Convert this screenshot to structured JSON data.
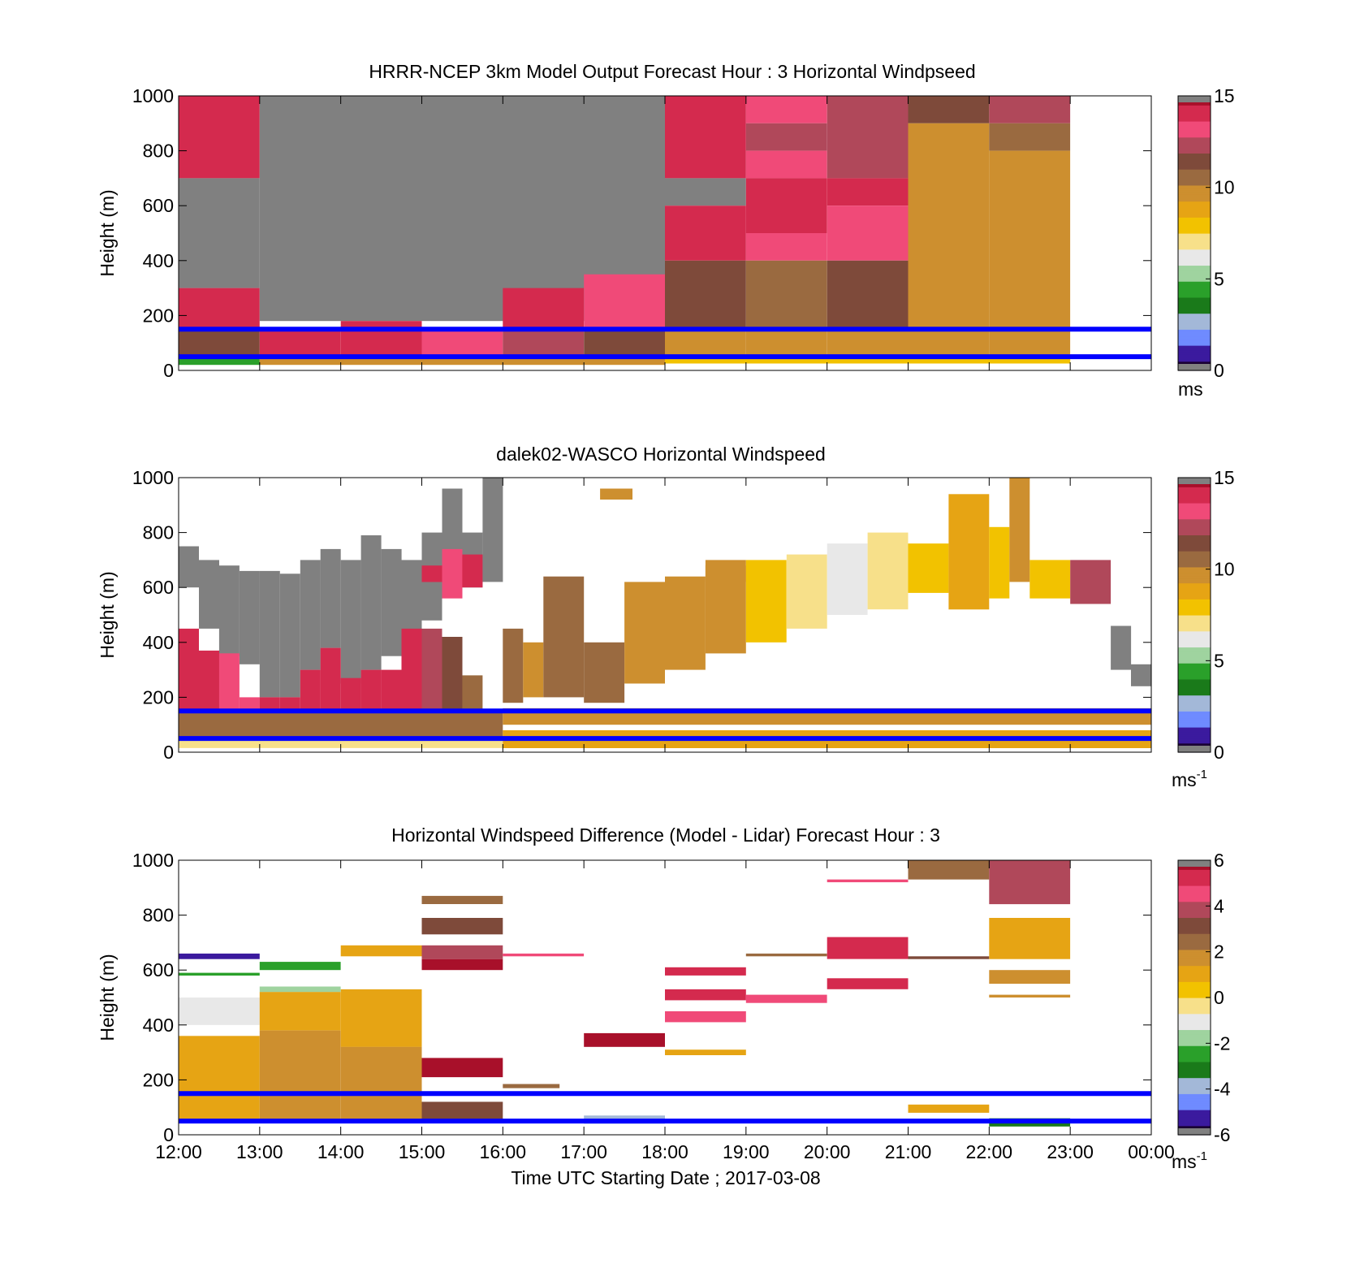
{
  "colors": {
    "frame": "#000000",
    "reference_line": "#0000ff",
    "missing_value": "#808080",
    "colormap": [
      "#808080",
      "#1a0033",
      "#3b1a9e",
      "#6f8bff",
      "#a3b8d8",
      "#1a7a1a",
      "#2aa02a",
      "#9fd39f",
      "#e8e8e8",
      "#f7e08a",
      "#f2c200",
      "#e6a414",
      "#cd8f2f",
      "#9a6a40",
      "#7e4a3a",
      "#b0485a",
      "#f04a78",
      "#d42a4e",
      "#a8102a",
      "#808080"
    ]
  },
  "chart_data": [
    {
      "type": "heatmap",
      "title": "HRRR-NCEP 3km Model Output   Forecast Hour : 3 Horizontal Windpseed",
      "ylabel": "Height (m)",
      "xlabel": "",
      "ylim": [
        0,
        1000
      ],
      "yticks": [
        "0",
        "200",
        "400",
        "600",
        "800",
        "1000"
      ],
      "xticks": [],
      "xlim_hours": [
        12,
        24
      ],
      "colorbar": {
        "min": 0,
        "max": 15,
        "ticks": [
          "0",
          "5",
          "10",
          "15"
        ],
        "unit": "ms",
        "unit_superscript": ""
      },
      "reference_lines_m": [
        150,
        50
      ],
      "cells": [
        {
          "t0": 12,
          "t1": 13,
          "z0": 700,
          "z1": 1000,
          "v": 13.8
        },
        {
          "t0": 12,
          "t1": 13,
          "z0": 300,
          "z1": 700,
          "v": -1
        },
        {
          "t0": 12,
          "t1": 13,
          "z0": 150,
          "z1": 300,
          "v": 13.7
        },
        {
          "t0": 12,
          "t1": 13,
          "z0": 50,
          "z1": 150,
          "v": 11.2
        },
        {
          "t0": 12,
          "t1": 13,
          "z0": 20,
          "z1": 50,
          "v": 4.0
        },
        {
          "t0": 13,
          "t1": 18,
          "z0": 180,
          "z1": 1000,
          "v": -1
        },
        {
          "t0": 13,
          "t1": 14,
          "z0": 50,
          "z1": 150,
          "v": 14.0
        },
        {
          "t0": 14,
          "t1": 15,
          "z0": 50,
          "z1": 180,
          "v": 13.9
        },
        {
          "t0": 15,
          "t1": 16,
          "z0": 50,
          "z1": 150,
          "v": 13.5
        },
        {
          "t0": 16,
          "t1": 17,
          "z0": 300,
          "z1": 1000,
          "v": -1
        },
        {
          "t0": 16,
          "t1": 17,
          "z0": 150,
          "z1": 300,
          "v": 14.2
        },
        {
          "t0": 16,
          "t1": 17,
          "z0": 50,
          "z1": 150,
          "v": 12.2
        },
        {
          "t0": 17,
          "t1": 18,
          "z0": 350,
          "z1": 1000,
          "v": -1
        },
        {
          "t0": 17,
          "t1": 18,
          "z0": 150,
          "z1": 350,
          "v": 13.6
        },
        {
          "t0": 17,
          "t1": 18,
          "z0": 50,
          "z1": 150,
          "v": 11.5
        },
        {
          "t0": 13,
          "t1": 18,
          "z0": 20,
          "z1": 50,
          "v": 9.5
        },
        {
          "t0": 18,
          "t1": 19,
          "z0": 700,
          "z1": 1000,
          "v": 14.3
        },
        {
          "t0": 18,
          "t1": 19,
          "z0": 600,
          "z1": 700,
          "v": -1
        },
        {
          "t0": 18,
          "t1": 19,
          "z0": 400,
          "z1": 600,
          "v": 13.7
        },
        {
          "t0": 18,
          "t1": 19,
          "z0": 150,
          "z1": 400,
          "v": 11.8
        },
        {
          "t0": 18,
          "t1": 19,
          "z0": 50,
          "z1": 150,
          "v": 9.5
        },
        {
          "t0": 19,
          "t1": 20,
          "z0": 900,
          "z1": 1000,
          "v": 13.0
        },
        {
          "t0": 19,
          "t1": 20,
          "z0": 800,
          "z1": 900,
          "v": 12.2
        },
        {
          "t0": 19,
          "t1": 20,
          "z0": 700,
          "z1": 800,
          "v": 13.0
        },
        {
          "t0": 19,
          "t1": 20,
          "z0": 500,
          "z1": 700,
          "v": 13.9
        },
        {
          "t0": 19,
          "t1": 20,
          "z0": 400,
          "z1": 500,
          "v": 13.0
        },
        {
          "t0": 19,
          "t1": 20,
          "z0": 150,
          "z1": 400,
          "v": 10.7
        },
        {
          "t0": 19,
          "t1": 20,
          "z0": 50,
          "z1": 150,
          "v": 9.5
        },
        {
          "t0": 20,
          "t1": 21,
          "z0": 700,
          "z1": 1000,
          "v": 12.3
        },
        {
          "t0": 20,
          "t1": 21,
          "z0": 600,
          "z1": 700,
          "v": 13.9
        },
        {
          "t0": 20,
          "t1": 21,
          "z0": 400,
          "z1": 600,
          "v": 13.1
        },
        {
          "t0": 20,
          "t1": 21,
          "z0": 150,
          "z1": 400,
          "v": 11.3
        },
        {
          "t0": 20,
          "t1": 21,
          "z0": 50,
          "z1": 150,
          "v": 10.1
        },
        {
          "t0": 21,
          "t1": 22,
          "z0": 900,
          "z1": 1000,
          "v": 11.5
        },
        {
          "t0": 21,
          "t1": 22,
          "z0": 50,
          "z1": 900,
          "v": 10.0
        },
        {
          "t0": 22,
          "t1": 23,
          "z0": 900,
          "z1": 1000,
          "v": 12.2
        },
        {
          "t0": 22,
          "t1": 23,
          "z0": 800,
          "z1": 900,
          "v": 11.0
        },
        {
          "t0": 22,
          "t1": 23,
          "z0": 50,
          "z1": 800,
          "v": 9.9
        },
        {
          "t0": 18,
          "t1": 23,
          "z0": 25,
          "z1": 50,
          "v": 8.0
        }
      ]
    },
    {
      "type": "heatmap",
      "title": "dalek02-WASCO  Horizontal Windspeed",
      "ylabel": "Height (m)",
      "xlabel": "",
      "ylim": [
        0,
        1000
      ],
      "yticks": [
        "0",
        "200",
        "400",
        "600",
        "800",
        "1000"
      ],
      "xticks": [],
      "xlim_hours": [
        12,
        24
      ],
      "colorbar": {
        "min": 0,
        "max": 15,
        "ticks": [
          "0",
          "5",
          "10",
          "15"
        ],
        "unit": "ms",
        "unit_superscript": "-1"
      },
      "reference_lines_m": [
        150,
        50
      ],
      "cells": [
        {
          "t0": 12,
          "t1": 12.25,
          "z0": 600,
          "z1": 750,
          "v": -1
        },
        {
          "t0": 12.25,
          "t1": 12.5,
          "z0": 450,
          "z1": 700,
          "v": -1
        },
        {
          "t0": 12.5,
          "t1": 12.75,
          "z0": 350,
          "z1": 680,
          "v": -1
        },
        {
          "t0": 12.75,
          "t1": 13,
          "z0": 320,
          "z1": 660,
          "v": -1
        },
        {
          "t0": 13,
          "t1": 13.25,
          "z0": 200,
          "z1": 660,
          "v": -1
        },
        {
          "t0": 13.25,
          "t1": 13.5,
          "z0": 200,
          "z1": 650,
          "v": -1
        },
        {
          "t0": 13.5,
          "t1": 13.75,
          "z0": 300,
          "z1": 700,
          "v": -1
        },
        {
          "t0": 13.75,
          "t1": 14,
          "z0": 380,
          "z1": 740,
          "v": -1
        },
        {
          "t0": 14,
          "t1": 14.25,
          "z0": 250,
          "z1": 700,
          "v": -1
        },
        {
          "t0": 14.25,
          "t1": 14.5,
          "z0": 300,
          "z1": 790,
          "v": -1
        },
        {
          "t0": 14.5,
          "t1": 14.75,
          "z0": 350,
          "z1": 740,
          "v": -1
        },
        {
          "t0": 14.75,
          "t1": 15,
          "z0": 380,
          "z1": 700,
          "v": -1
        },
        {
          "t0": 15,
          "t1": 15.25,
          "z0": 480,
          "z1": 800,
          "v": -1
        },
        {
          "t0": 15.25,
          "t1": 15.5,
          "z0": 600,
          "z1": 960,
          "v": -1
        },
        {
          "t0": 15.5,
          "t1": 15.75,
          "z0": 600,
          "z1": 800,
          "v": -1
        },
        {
          "t0": 15.75,
          "t1": 16,
          "z0": 620,
          "z1": 1000,
          "v": -1
        },
        {
          "t0": 12,
          "t1": 12.25,
          "z0": 150,
          "z1": 450,
          "v": 13.7
        },
        {
          "t0": 12.25,
          "t1": 12.5,
          "z0": 150,
          "z1": 370,
          "v": 14.0
        },
        {
          "t0": 12.5,
          "t1": 12.75,
          "z0": 150,
          "z1": 360,
          "v": 13.0
        },
        {
          "t0": 12.75,
          "t1": 13,
          "z0": 150,
          "z1": 200,
          "v": 13.4
        },
        {
          "t0": 13,
          "t1": 13.25,
          "z0": 150,
          "z1": 200,
          "v": 14.2
        },
        {
          "t0": 13.25,
          "t1": 13.5,
          "z0": 150,
          "z1": 200,
          "v": 14.0
        },
        {
          "t0": 13.5,
          "t1": 13.75,
          "z0": 150,
          "z1": 300,
          "v": 13.9
        },
        {
          "t0": 13.75,
          "t1": 14,
          "z0": 150,
          "z1": 380,
          "v": 13.8
        },
        {
          "t0": 14,
          "t1": 14.25,
          "z0": 150,
          "z1": 270,
          "v": 14.0
        },
        {
          "t0": 14.25,
          "t1": 14.5,
          "z0": 150,
          "z1": 300,
          "v": 13.8
        },
        {
          "t0": 14.5,
          "t1": 14.75,
          "z0": 150,
          "z1": 300,
          "v": 13.9
        },
        {
          "t0": 14.75,
          "t1": 15,
          "z0": 150,
          "z1": 450,
          "v": 13.9
        },
        {
          "t0": 15,
          "t1": 15.25,
          "z0": 150,
          "z1": 450,
          "v": 12.2
        },
        {
          "t0": 15.25,
          "t1": 15.5,
          "z0": 150,
          "z1": 420,
          "v": 11.2
        },
        {
          "t0": 15.5,
          "t1": 15.75,
          "z0": 150,
          "z1": 280,
          "v": 10.3
        },
        {
          "t0": 15,
          "t1": 15.25,
          "z0": 620,
          "z1": 680,
          "v": 14.0
        },
        {
          "t0": 15.25,
          "t1": 15.5,
          "z0": 560,
          "z1": 740,
          "v": 13.3
        },
        {
          "t0": 15.5,
          "t1": 15.75,
          "z0": 600,
          "z1": 720,
          "v": 14.3
        },
        {
          "t0": 12,
          "t1": 16,
          "z0": 50,
          "z1": 150,
          "v": 10.6
        },
        {
          "t0": 12,
          "t1": 16,
          "z0": 15,
          "z1": 50,
          "v": 6.7
        },
        {
          "t0": 16,
          "t1": 16.25,
          "z0": 180,
          "z1": 450,
          "v": 10.4
        },
        {
          "t0": 16.25,
          "t1": 16.5,
          "z0": 200,
          "z1": 400,
          "v": 9.7
        },
        {
          "t0": 16.5,
          "t1": 17,
          "z0": 200,
          "z1": 640,
          "v": 10.4
        },
        {
          "t0": 17,
          "t1": 17.5,
          "z0": 180,
          "z1": 400,
          "v": 10.3
        },
        {
          "t0": 17.5,
          "t1": 18,
          "z0": 250,
          "z1": 620,
          "v": 10.0
        },
        {
          "t0": 18,
          "t1": 18.5,
          "z0": 300,
          "z1": 640,
          "v": 10.1
        },
        {
          "t0": 18.5,
          "t1": 19,
          "z0": 360,
          "z1": 680,
          "v": 9.8
        },
        {
          "t0": 18.5,
          "t1": 19,
          "z0": 620,
          "z1": 700,
          "v": 9.9
        },
        {
          "t0": 17.2,
          "t1": 17.6,
          "z0": 920,
          "z1": 960,
          "v": 9.3
        },
        {
          "t0": 19,
          "t1": 19.5,
          "z0": 400,
          "z1": 700,
          "v": 8.0
        },
        {
          "t0": 19.5,
          "t1": 20,
          "z0": 450,
          "z1": 720,
          "v": 7.0
        },
        {
          "t0": 20,
          "t1": 20.5,
          "z0": 500,
          "z1": 760,
          "v": 6.6
        },
        {
          "t0": 20.5,
          "t1": 21,
          "z0": 520,
          "z1": 800,
          "v": 7.2
        },
        {
          "t0": 21,
          "t1": 21.5,
          "z0": 580,
          "z1": 760,
          "v": 7.5
        },
        {
          "t0": 21.5,
          "t1": 22,
          "z0": 520,
          "z1": 940,
          "v": 8.8
        },
        {
          "t0": 22,
          "t1": 22.25,
          "z0": 560,
          "z1": 820,
          "v": 7.6
        },
        {
          "t0": 22.25,
          "t1": 22.5,
          "z0": 620,
          "z1": 1000,
          "v": 9.7
        },
        {
          "t0": 22.5,
          "t1": 23,
          "z0": 560,
          "z1": 700,
          "v": 8.3
        },
        {
          "t0": 23,
          "t1": 23.5,
          "z0": 540,
          "z1": 700,
          "v": 12.0
        },
        {
          "t0": 23.5,
          "t1": 23.75,
          "z0": 300,
          "z1": 460,
          "v": -1
        },
        {
          "t0": 23.75,
          "t1": 24,
          "z0": 240,
          "z1": 320,
          "v": -1
        },
        {
          "t0": 16,
          "t1": 24,
          "z0": 100,
          "z1": 160,
          "v": 9.6
        },
        {
          "t0": 16,
          "t1": 24,
          "z0": 15,
          "z1": 80,
          "v": 8.9
        }
      ]
    },
    {
      "type": "heatmap",
      "title": "Horizontal Windspeed Difference (Model - Lidar) Forecast Hour : 3",
      "ylabel": "Height (m)",
      "xlabel": "Time UTC  Starting Date ; 2017-03-08",
      "ylim": [
        0,
        1000
      ],
      "yticks": [
        "0",
        "200",
        "400",
        "600",
        "800",
        "1000"
      ],
      "xticks": [
        "12:00",
        "13:00",
        "14:00",
        "15:00",
        "16:00",
        "17:00",
        "18:00",
        "19:00",
        "20:00",
        "21:00",
        "22:00",
        "23:00",
        "00:00"
      ],
      "xlim_hours": [
        12,
        24
      ],
      "colorbar": {
        "min": -6,
        "max": 6,
        "ticks": [
          "-6",
          "-4",
          "-2",
          "0",
          "2",
          "4",
          "6"
        ],
        "unit": "ms",
        "unit_superscript": "-1"
      },
      "reference_lines_m": [
        150,
        50
      ],
      "cells": [
        {
          "t0": 12,
          "t1": 13,
          "z0": 640,
          "z1": 660,
          "v": -5.0
        },
        {
          "t0": 12,
          "t1": 13,
          "z0": 580,
          "z1": 590,
          "v": -2.8
        },
        {
          "t0": 12,
          "t1": 13,
          "z0": 400,
          "z1": 500,
          "v": -1.2
        },
        {
          "t0": 12,
          "t1": 13,
          "z0": 50,
          "z1": 360,
          "v": 1.4
        },
        {
          "t0": 13,
          "t1": 14,
          "z0": 600,
          "z1": 630,
          "v": -2.3
        },
        {
          "t0": 13,
          "t1": 14,
          "z0": 520,
          "z1": 540,
          "v": -2.0
        },
        {
          "t0": 13,
          "t1": 14,
          "z0": 380,
          "z1": 520,
          "v": 0.8
        },
        {
          "t0": 13,
          "t1": 14,
          "z0": 50,
          "z1": 380,
          "v": 2.0
        },
        {
          "t0": 14,
          "t1": 15,
          "z0": 650,
          "z1": 690,
          "v": 1.2
        },
        {
          "t0": 14,
          "t1": 15,
          "z0": 320,
          "z1": 530,
          "v": 1.1
        },
        {
          "t0": 14,
          "t1": 15,
          "z0": 50,
          "z1": 320,
          "v": 1.5
        },
        {
          "t0": 15,
          "t1": 16,
          "z0": 840,
          "z1": 870,
          "v": 2.3
        },
        {
          "t0": 15,
          "t1": 16,
          "z0": 730,
          "z1": 790,
          "v": 3.1
        },
        {
          "t0": 15,
          "t1": 16,
          "z0": 640,
          "z1": 690,
          "v": 3.8
        },
        {
          "t0": 15,
          "t1": 16,
          "z0": 600,
          "z1": 640,
          "v": 5.8
        },
        {
          "t0": 15,
          "t1": 16,
          "z0": 210,
          "z1": 280,
          "v": 6.0
        },
        {
          "t0": 15,
          "t1": 16,
          "z0": 50,
          "z1": 120,
          "v": 3.0
        },
        {
          "t0": 16,
          "t1": 17,
          "z0": 650,
          "z1": 660,
          "v": 4.7
        },
        {
          "t0": 16,
          "t1": 16.7,
          "z0": 170,
          "z1": 185,
          "v": 2.4
        },
        {
          "t0": 17,
          "t1": 18,
          "z0": 320,
          "z1": 370,
          "v": 6.0
        },
        {
          "t0": 17,
          "t1": 18,
          "z0": 40,
          "z1": 70,
          "v": -3.7
        },
        {
          "t0": 18,
          "t1": 19,
          "z0": 580,
          "z1": 610,
          "v": 5.0
        },
        {
          "t0": 18,
          "t1": 19,
          "z0": 490,
          "z1": 530,
          "v": 5.0
        },
        {
          "t0": 18,
          "t1": 19,
          "z0": 410,
          "z1": 450,
          "v": 4.8
        },
        {
          "t0": 18,
          "t1": 19,
          "z0": 290,
          "z1": 310,
          "v": 1.3
        },
        {
          "t0": 19,
          "t1": 20,
          "z0": 650,
          "z1": 660,
          "v": 2.4
        },
        {
          "t0": 19,
          "t1": 20,
          "z0": 480,
          "z1": 510,
          "v": 4.8
        },
        {
          "t0": 20,
          "t1": 21,
          "z0": 920,
          "z1": 930,
          "v": 4.9
        },
        {
          "t0": 20,
          "t1": 21,
          "z0": 640,
          "z1": 720,
          "v": 5.1
        },
        {
          "t0": 20,
          "t1": 21,
          "z0": 530,
          "z1": 570,
          "v": 5.1
        },
        {
          "t0": 21,
          "t1": 22,
          "z0": 930,
          "z1": 1000,
          "v": 2.8
        },
        {
          "t0": 21,
          "t1": 22,
          "z0": 640,
          "z1": 650,
          "v": 3.2
        },
        {
          "t0": 21,
          "t1": 22,
          "z0": 80,
          "z1": 110,
          "v": 0.8
        },
        {
          "t0": 22,
          "t1": 23,
          "z0": 840,
          "z1": 1000,
          "v": 3.9
        },
        {
          "t0": 22,
          "t1": 23,
          "z0": 640,
          "z1": 790,
          "v": 1.2
        },
        {
          "t0": 22,
          "t1": 23,
          "z0": 550,
          "z1": 600,
          "v": 1.5
        },
        {
          "t0": 22,
          "t1": 23,
          "z0": 500,
          "z1": 510,
          "v": 1.6
        },
        {
          "t0": 22,
          "t1": 23,
          "z0": 30,
          "z1": 60,
          "v": -3.2
        }
      ]
    }
  ]
}
